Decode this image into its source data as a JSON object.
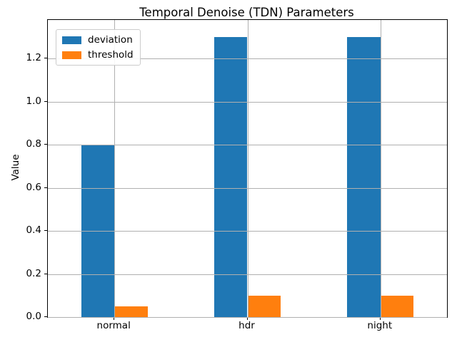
{
  "chart_data": {
    "type": "bar",
    "title": "Temporal Denoise (TDN) Parameters",
    "xlabel": "",
    "ylabel": "Value",
    "categories": [
      "normal",
      "hdr",
      "night"
    ],
    "series": [
      {
        "name": "deviation",
        "color": "#1f77b4",
        "values": [
          0.8,
          1.3,
          1.3
        ]
      },
      {
        "name": "threshold",
        "color": "#ff7f0e",
        "values": [
          0.05,
          0.1,
          0.1
        ]
      }
    ],
    "yticks": [
      0.0,
      0.2,
      0.4,
      0.6,
      0.8,
      1.0,
      1.2
    ],
    "ylim": [
      0,
      1.38
    ],
    "bar_width_data_units": 0.25,
    "grid": true,
    "grid_color": "#b0b0b0",
    "legend_position": "upper left"
  }
}
